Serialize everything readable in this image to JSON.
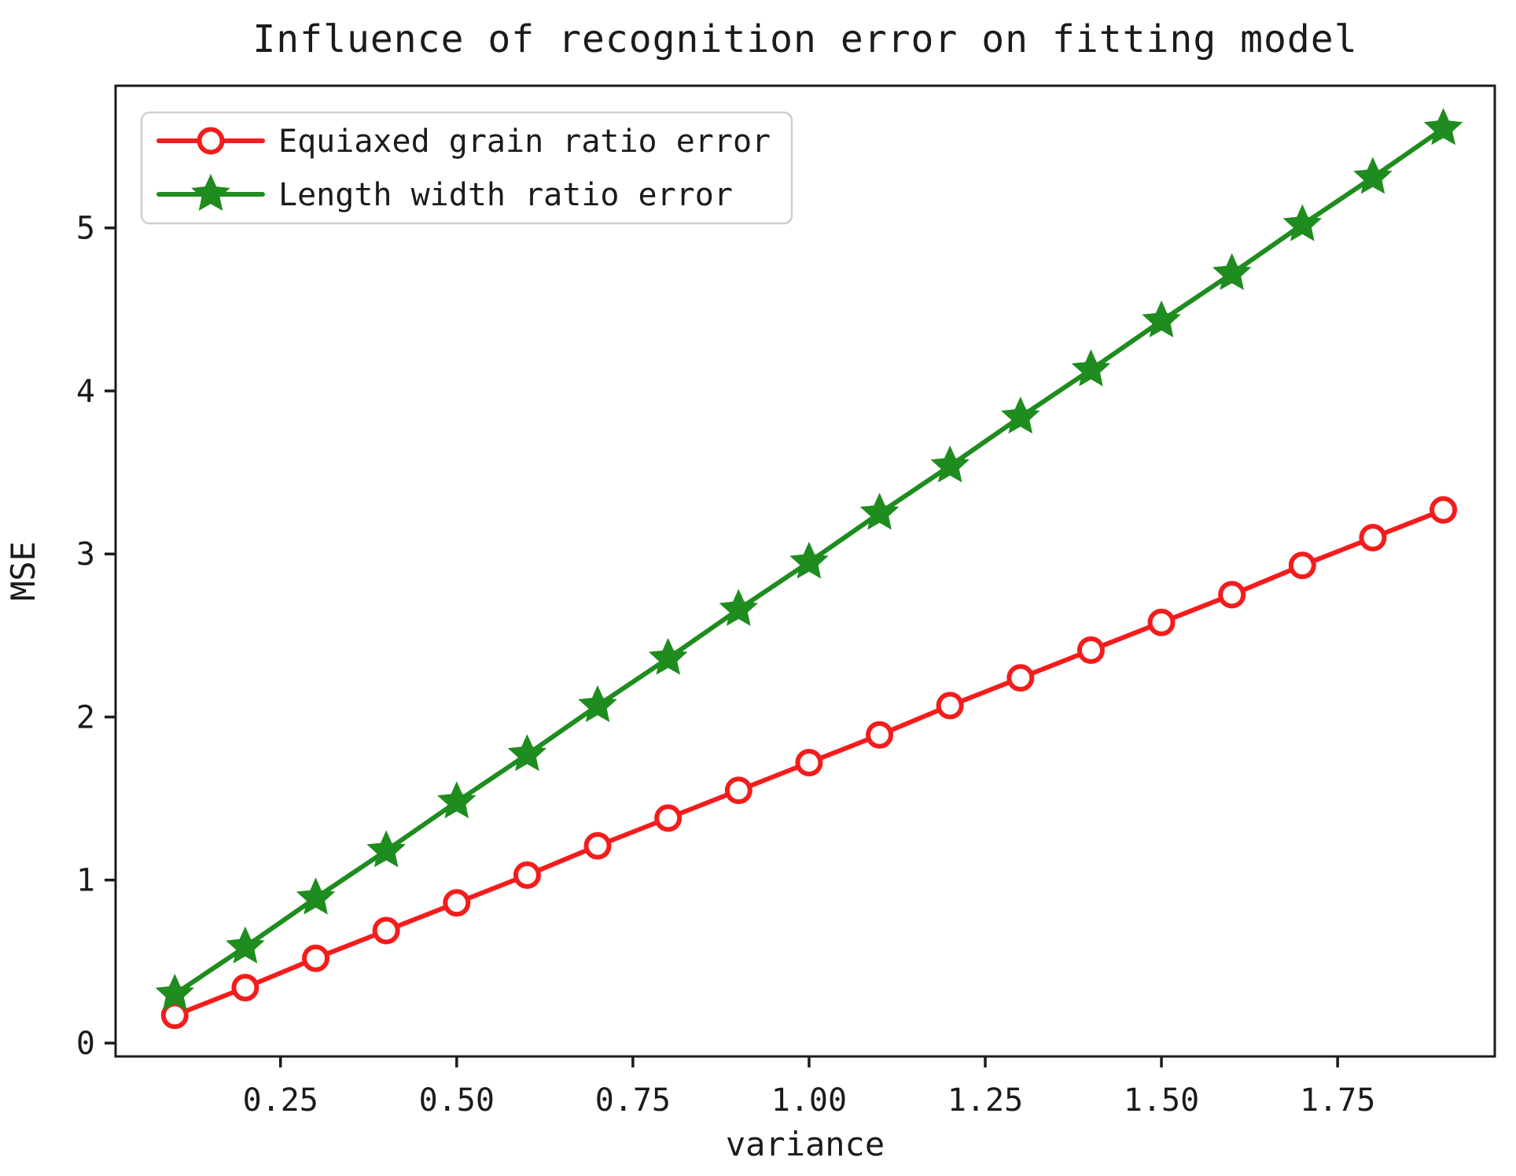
{
  "chart_data": {
    "type": "line",
    "title": "Influence of recognition error on fitting model",
    "xlabel": "variance",
    "ylabel": "MSE",
    "xlim": [
      0.016,
      1.973
    ],
    "ylim": [
      -0.082,
      5.872
    ],
    "grid": false,
    "xticks": {
      "values": [
        0.25,
        0.5,
        0.75,
        1.0,
        1.25,
        1.5,
        1.75
      ],
      "labels": [
        "0.25",
        "0.50",
        "0.75",
        "1.00",
        "1.25",
        "1.50",
        "1.75"
      ]
    },
    "yticks": {
      "values": [
        0,
        1,
        2,
        3,
        4,
        5
      ],
      "labels": [
        "0",
        "1",
        "2",
        "3",
        "4",
        "5"
      ]
    },
    "legend": {
      "position": "upper-left"
    },
    "x": [
      0.1,
      0.2,
      0.3,
      0.4,
      0.5,
      0.6,
      0.7,
      0.8,
      0.9,
      1.0,
      1.1,
      1.2,
      1.3,
      1.4,
      1.5,
      1.6,
      1.7,
      1.8,
      1.9
    ],
    "series": [
      {
        "name": "Equiaxed grain ratio error",
        "color": "#f41c1c",
        "marker": "open-circle",
        "values": [
          0.17,
          0.34,
          0.52,
          0.69,
          0.86,
          1.03,
          1.21,
          1.38,
          1.55,
          1.72,
          1.89,
          2.07,
          2.24,
          2.41,
          2.58,
          2.75,
          2.93,
          3.1,
          3.27
        ]
      },
      {
        "name": "Length width ratio error",
        "color": "#1e8c1e",
        "marker": "star",
        "values": [
          0.3,
          0.59,
          0.89,
          1.18,
          1.48,
          1.77,
          2.07,
          2.36,
          2.66,
          2.95,
          3.25,
          3.54,
          3.84,
          4.13,
          4.43,
          4.72,
          5.02,
          5.31,
          5.61
        ]
      }
    ],
    "colors": {
      "axis": "#1b1b1b",
      "text": "#1b1b1b",
      "legend_border": "#cfcfcf",
      "background": "#ffffff"
    }
  }
}
